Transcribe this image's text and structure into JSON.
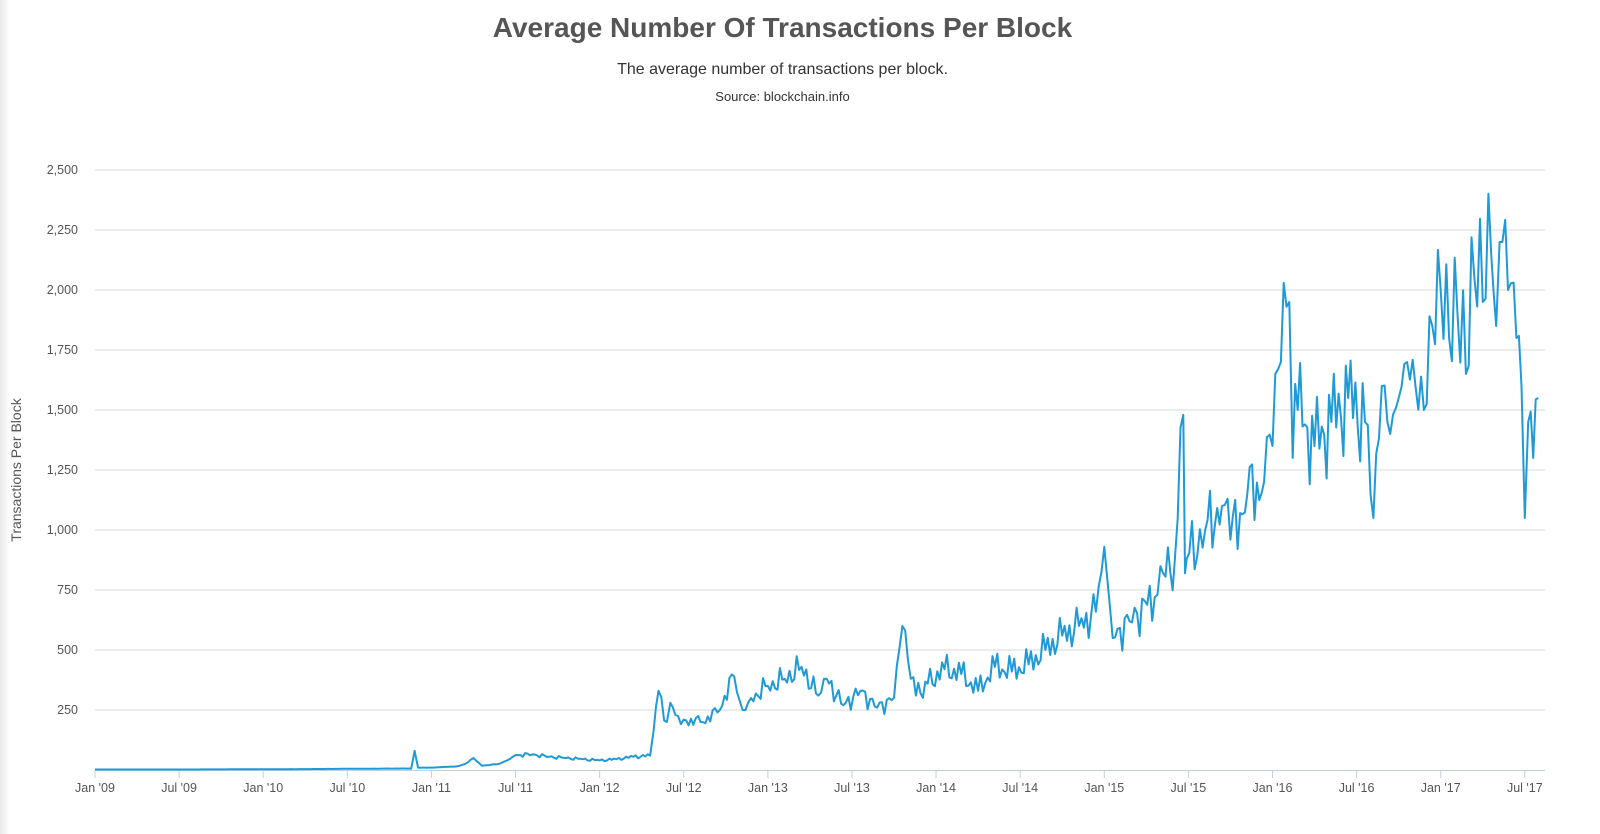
{
  "chart_data": {
    "type": "line",
    "title": "Average Number Of Transactions Per Block",
    "subtitle": "The average number of transactions per block.",
    "source": "Source: blockchain.info",
    "xlabel": "",
    "ylabel": "Transactions Per Block",
    "ylim": [
      0,
      2500
    ],
    "yticks": [
      250,
      500,
      750,
      1000,
      1250,
      1500,
      1750,
      2000,
      2250,
      2500
    ],
    "ytick_labels": [
      "250",
      "500",
      "750",
      "1,000",
      "1,250",
      "1,500",
      "1,750",
      "2,000",
      "2,250",
      "2,500"
    ],
    "xlim": [
      2009.0,
      2017.62
    ],
    "xticks": [
      2009.0,
      2009.5,
      2010.0,
      2010.5,
      2011.0,
      2011.5,
      2012.0,
      2012.5,
      2013.0,
      2013.5,
      2014.0,
      2014.5,
      2015.0,
      2015.5,
      2016.0,
      2016.5,
      2017.0,
      2017.5
    ],
    "xtick_labels": [
      "Jan '09",
      "Jul '09",
      "Jan '10",
      "Jul '10",
      "Jan '11",
      "Jul '11",
      "Jan '12",
      "Jul '12",
      "Jan '13",
      "Jul '13",
      "Jan '14",
      "Jul '14",
      "Jan '15",
      "Jul '15",
      "Jan '16",
      "Jul '16",
      "Jan '17",
      "Jul '17"
    ],
    "grid": true,
    "line_color": "#1f9ad6",
    "series": [
      {
        "name": "Transactions Per Block",
        "x": [
          2009.0,
          2009.5,
          2009.9,
          2010.0,
          2010.3,
          2010.5,
          2010.75,
          2010.88,
          2010.9,
          2010.92,
          2010.96,
          2011.0,
          2011.15,
          2011.2,
          2011.25,
          2011.3,
          2011.4,
          2011.45,
          2011.5,
          2011.6,
          2011.7,
          2011.8,
          2011.9,
          2012.0,
          2012.1,
          2012.2,
          2012.3,
          2012.32,
          2012.35,
          2012.4,
          2012.42,
          2012.45,
          2012.5,
          2012.6,
          2012.7,
          2012.8,
          2012.85,
          2012.9,
          2013.0,
          2013.1,
          2013.2,
          2013.3,
          2013.35,
          2013.45,
          2013.55,
          2013.65,
          2013.75,
          2013.8,
          2013.85,
          2013.88,
          2013.95,
          2014.05,
          2014.15,
          2014.25,
          2014.35,
          2014.45,
          2014.55,
          2014.65,
          2014.75,
          2014.85,
          2014.95,
          2015.0,
          2015.05,
          2015.15,
          2015.3,
          2015.35,
          2015.42,
          2015.47,
          2015.48,
          2015.49,
          2015.6,
          2015.7,
          2015.75,
          2015.85,
          2015.95,
          2016.0,
          2016.05,
          2016.1,
          2016.12,
          2016.15,
          2016.25,
          2016.35,
          2016.45,
          2016.55,
          2016.6,
          2016.65,
          2016.7,
          2016.75,
          2016.8,
          2016.85,
          2016.9,
          2016.95,
          2017.0,
          2017.05,
          2017.1,
          2017.15,
          2017.2,
          2017.25,
          2017.3,
          2017.33,
          2017.35,
          2017.4,
          2017.45,
          2017.48,
          2017.5,
          2017.52,
          2017.55,
          2017.58
        ],
        "values": [
          2,
          2,
          3,
          3,
          4,
          5,
          6,
          6,
          80,
          10,
          10,
          10,
          15,
          25,
          50,
          18,
          25,
          40,
          62,
          65,
          55,
          50,
          45,
          40,
          45,
          55,
          60,
          160,
          330,
          200,
          280,
          230,
          210,
          200,
          240,
          390,
          250,
          300,
          350,
          380,
          430,
          310,
          380,
          270,
          330,
          260,
          300,
          600,
          380,
          310,
          360,
          420,
          400,
          330,
          430,
          410,
          440,
          500,
          560,
          600,
          660,
          930,
          550,
          620,
          720,
          820,
          880,
          1480,
          820,
          880,
          1000,
          1100,
          960,
          1150,
          1200,
          1350,
          1700,
          1950,
          1300,
          1500,
          1350,
          1450,
          1550,
          1450,
          1050,
          1600,
          1400,
          1550,
          1700,
          1600,
          1500,
          1850,
          2000,
          1800,
          1900,
          1650,
          2050,
          1950,
          2150,
          1850,
          2200,
          2000,
          1800,
          1600,
          1050,
          1450,
          1300,
          1550
        ]
      }
    ]
  }
}
